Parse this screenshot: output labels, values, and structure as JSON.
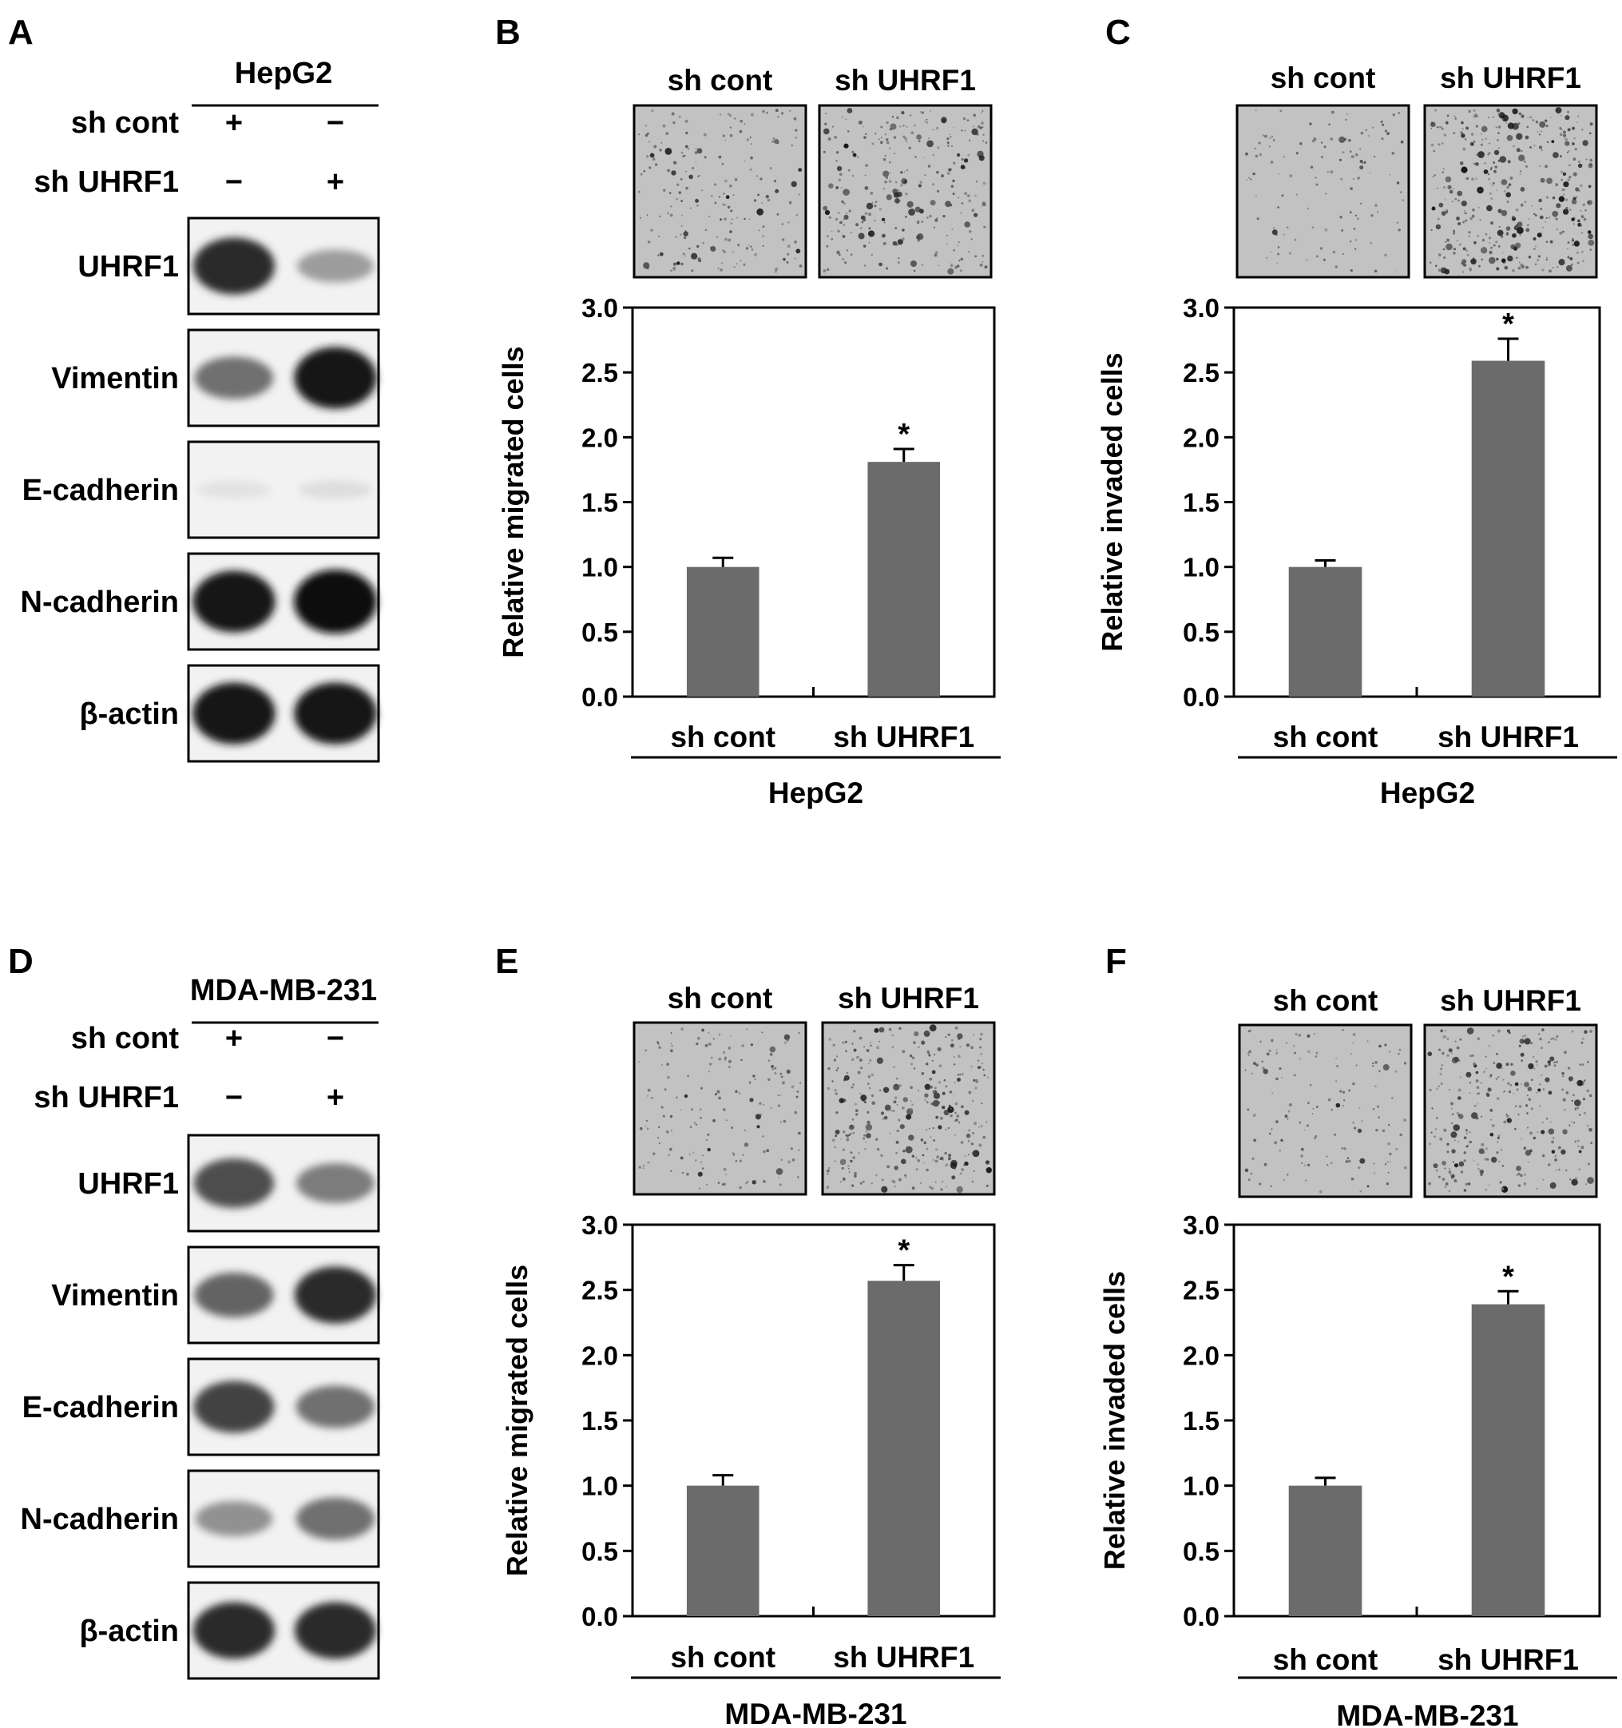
{
  "colors": {
    "bar": "#6b6b6b",
    "axis": "#000000",
    "photo_bg": "#c2c2c2",
    "blot_bg": "#f2f2f2"
  },
  "blot_panels": [
    {
      "letter": "A",
      "cell_line": "HepG2",
      "rows": [
        {
          "name": "sh cont",
          "lane1": "+",
          "lane2": "−"
        },
        {
          "name": "sh UHRF1",
          "lane1": "−",
          "lane2": "+"
        }
      ],
      "bands": [
        {
          "label": "UHRF1",
          "lane1": 0.85,
          "lane2": 0.35
        },
        {
          "label": "Vimentin",
          "lane1": 0.55,
          "lane2": 0.95
        },
        {
          "label": "E-cadherin",
          "lane1": 0.04,
          "lane2": 0.06
        },
        {
          "label": "N-cadherin",
          "lane1": 0.95,
          "lane2": 1.0
        },
        {
          "label": "β-actin",
          "lane1": 0.95,
          "lane2": 0.95
        }
      ]
    },
    {
      "letter": "D",
      "cell_line": "MDA-MB-231",
      "rows": [
        {
          "name": "sh cont",
          "lane1": "+",
          "lane2": "−"
        },
        {
          "name": "sh UHRF1",
          "lane1": "−",
          "lane2": "+"
        }
      ],
      "bands": [
        {
          "label": "UHRF1",
          "lane1": 0.7,
          "lane2": 0.5
        },
        {
          "label": "Vimentin",
          "lane1": 0.6,
          "lane2": 0.85
        },
        {
          "label": "E-cadherin",
          "lane1": 0.75,
          "lane2": 0.55
        },
        {
          "label": "N-cadherin",
          "lane1": 0.4,
          "lane2": 0.55
        },
        {
          "label": "β-actin",
          "lane1": 0.85,
          "lane2": 0.85
        }
      ]
    }
  ],
  "chart_data": [
    {
      "panel": "B",
      "type": "bar",
      "categories": [
        "sh cont",
        "sh UHRF1"
      ],
      "values": [
        1.0,
        1.81
      ],
      "errors": [
        0.07,
        0.1
      ],
      "significance": [
        "",
        "*"
      ],
      "ylabel": "Relative migrated cells",
      "xlabel": "HepG2",
      "ylim": [
        0.0,
        3.0
      ],
      "yticks": [
        "0.0",
        "0.5",
        "1.0",
        "1.5",
        "2.0",
        "2.5",
        "3.0"
      ],
      "images": {
        "labels": [
          "sh cont",
          "sh UHRF1"
        ],
        "density": [
          0.35,
          0.55
        ]
      }
    },
    {
      "panel": "C",
      "type": "bar",
      "categories": [
        "sh cont",
        "sh UHRF1"
      ],
      "values": [
        1.0,
        2.59
      ],
      "errors": [
        0.05,
        0.17
      ],
      "significance": [
        "",
        "*"
      ],
      "ylabel": "Relative invaded cells",
      "xlabel": "HepG2",
      "ylim": [
        0.0,
        3.0
      ],
      "yticks": [
        "0.0",
        "0.5",
        "1.0",
        "1.5",
        "2.0",
        "2.5",
        "3.0"
      ],
      "images": {
        "labels": [
          "sh cont",
          "sh UHRF1"
        ],
        "density": [
          0.15,
          0.8
        ]
      }
    },
    {
      "panel": "E",
      "type": "bar",
      "categories": [
        "sh cont",
        "sh UHRF1"
      ],
      "values": [
        1.0,
        2.57
      ],
      "errors": [
        0.08,
        0.12
      ],
      "significance": [
        "",
        "*"
      ],
      "ylabel": "Relative migrated cells",
      "xlabel": "MDA-MB-231",
      "ylim": [
        0.0,
        3.0
      ],
      "yticks": [
        "0.0",
        "0.5",
        "1.0",
        "1.5",
        "2.0",
        "2.5",
        "3.0"
      ],
      "images": {
        "labels": [
          "sh cont",
          "sh UHRF1"
        ],
        "density": [
          0.25,
          0.65
        ]
      }
    },
    {
      "panel": "F",
      "type": "bar",
      "categories": [
        "sh cont",
        "sh UHRF1"
      ],
      "values": [
        1.0,
        2.39
      ],
      "errors": [
        0.06,
        0.1
      ],
      "significance": [
        "",
        "*"
      ],
      "ylabel": "Relative invaded cells",
      "xlabel": "MDA-MB-231",
      "ylim": [
        0.0,
        3.0
      ],
      "yticks": [
        "0.0",
        "0.5",
        "1.0",
        "1.5",
        "2.0",
        "2.5",
        "3.0"
      ],
      "images": {
        "labels": [
          "sh cont",
          "sh UHRF1"
        ],
        "density": [
          0.2,
          0.6
        ]
      }
    }
  ]
}
